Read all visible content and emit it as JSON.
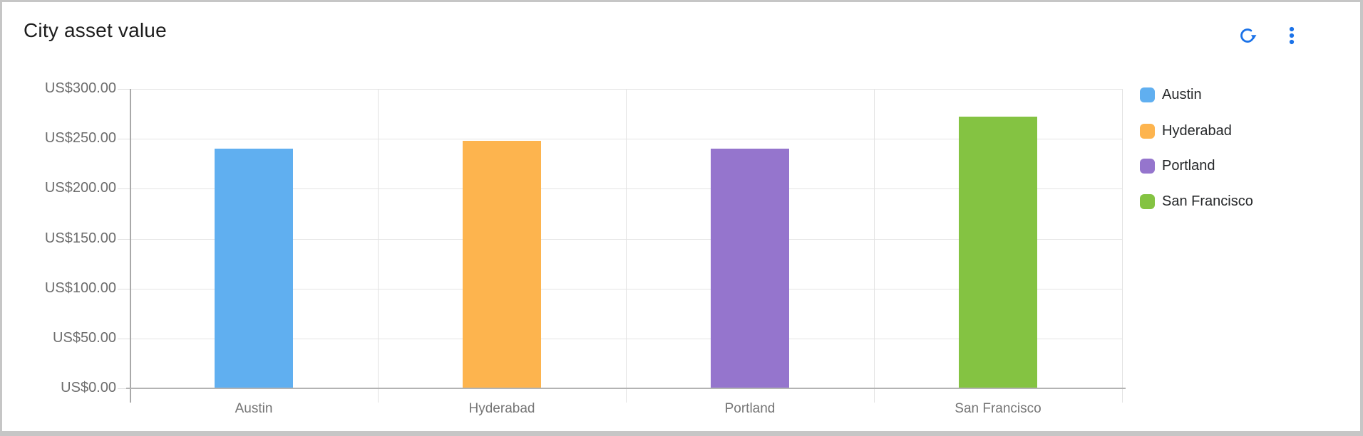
{
  "header": {
    "title": "City asset value",
    "icon_color": "#1b72e8",
    "refresh_icon": "refresh-icon",
    "menu_icon": "kebab-menu-icon"
  },
  "chart_data": {
    "type": "bar",
    "title": "City asset value",
    "categories": [
      "Austin",
      "Hyderabad",
      "Portland",
      "San Francisco"
    ],
    "values": [
      240,
      248,
      240,
      272
    ],
    "series_colors": [
      "#60AFF0",
      "#FDB44E",
      "#9575CD",
      "#84C342"
    ],
    "xlabel": "",
    "ylabel": "",
    "ylim": [
      0,
      300
    ],
    "ytick_step": 50,
    "ytick_labels": [
      "US$0.00",
      "US$50.00",
      "US$100.00",
      "US$150.00",
      "US$200.00",
      "US$250.00",
      "US$300.00"
    ],
    "grid": true,
    "legend_position": "right",
    "legend": [
      {
        "label": "Austin",
        "color": "#60AFF0"
      },
      {
        "label": "Hyderabad",
        "color": "#FDB44E"
      },
      {
        "label": "Portland",
        "color": "#9575CD"
      },
      {
        "label": "San Francisco",
        "color": "#84C342"
      }
    ]
  }
}
